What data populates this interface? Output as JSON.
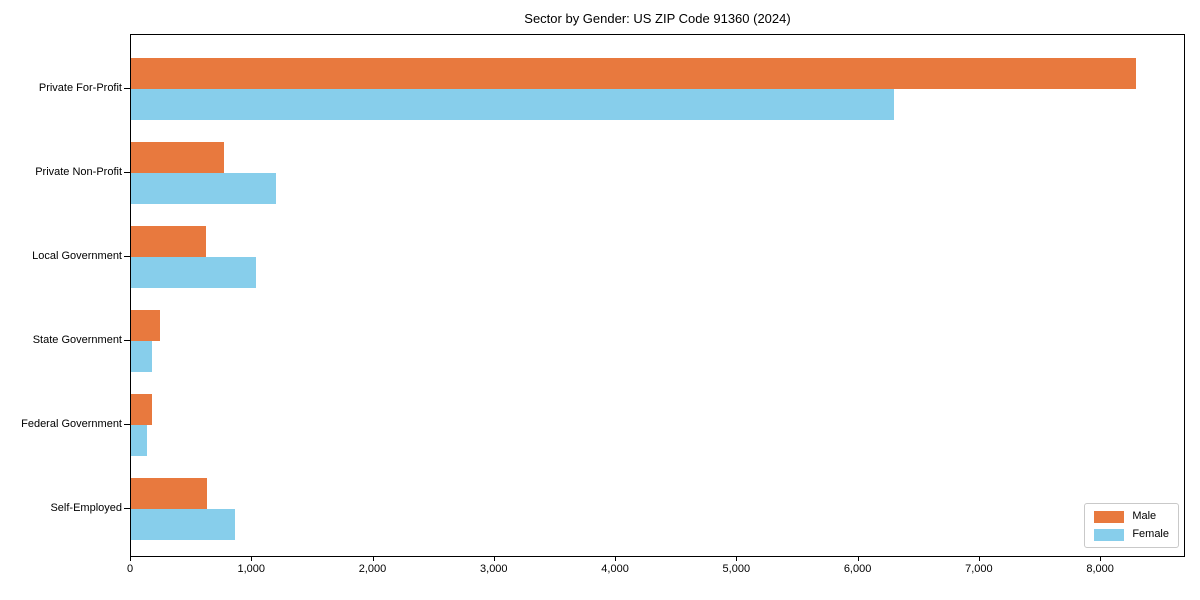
{
  "chart_data": {
    "type": "bar",
    "orientation": "horizontal",
    "title": "Sector by Gender: US ZIP Code 91360 (2024)",
    "categories": [
      "Private For-Profit",
      "Private Non-Profit",
      "Local Government",
      "State Government",
      "Federal Government",
      "Self-Employed"
    ],
    "series": [
      {
        "name": "Male",
        "color": "#e8793e",
        "values": [
          8300,
          770,
          620,
          240,
          170,
          630
        ]
      },
      {
        "name": "Female",
        "color": "#87ceeb",
        "values": [
          6300,
          1200,
          1030,
          170,
          130,
          860
        ]
      }
    ],
    "xlabel": "",
    "ylabel": "",
    "xlim": [
      0,
      8700
    ],
    "xticks": [
      0,
      1000,
      2000,
      3000,
      4000,
      5000,
      6000,
      7000,
      8000
    ],
    "xtick_labels": [
      "0",
      "1,000",
      "2,000",
      "3,000",
      "4,000",
      "5,000",
      "6,000",
      "7,000",
      "8,000"
    ],
    "grid": false,
    "legend": {
      "position": "lower right"
    }
  }
}
